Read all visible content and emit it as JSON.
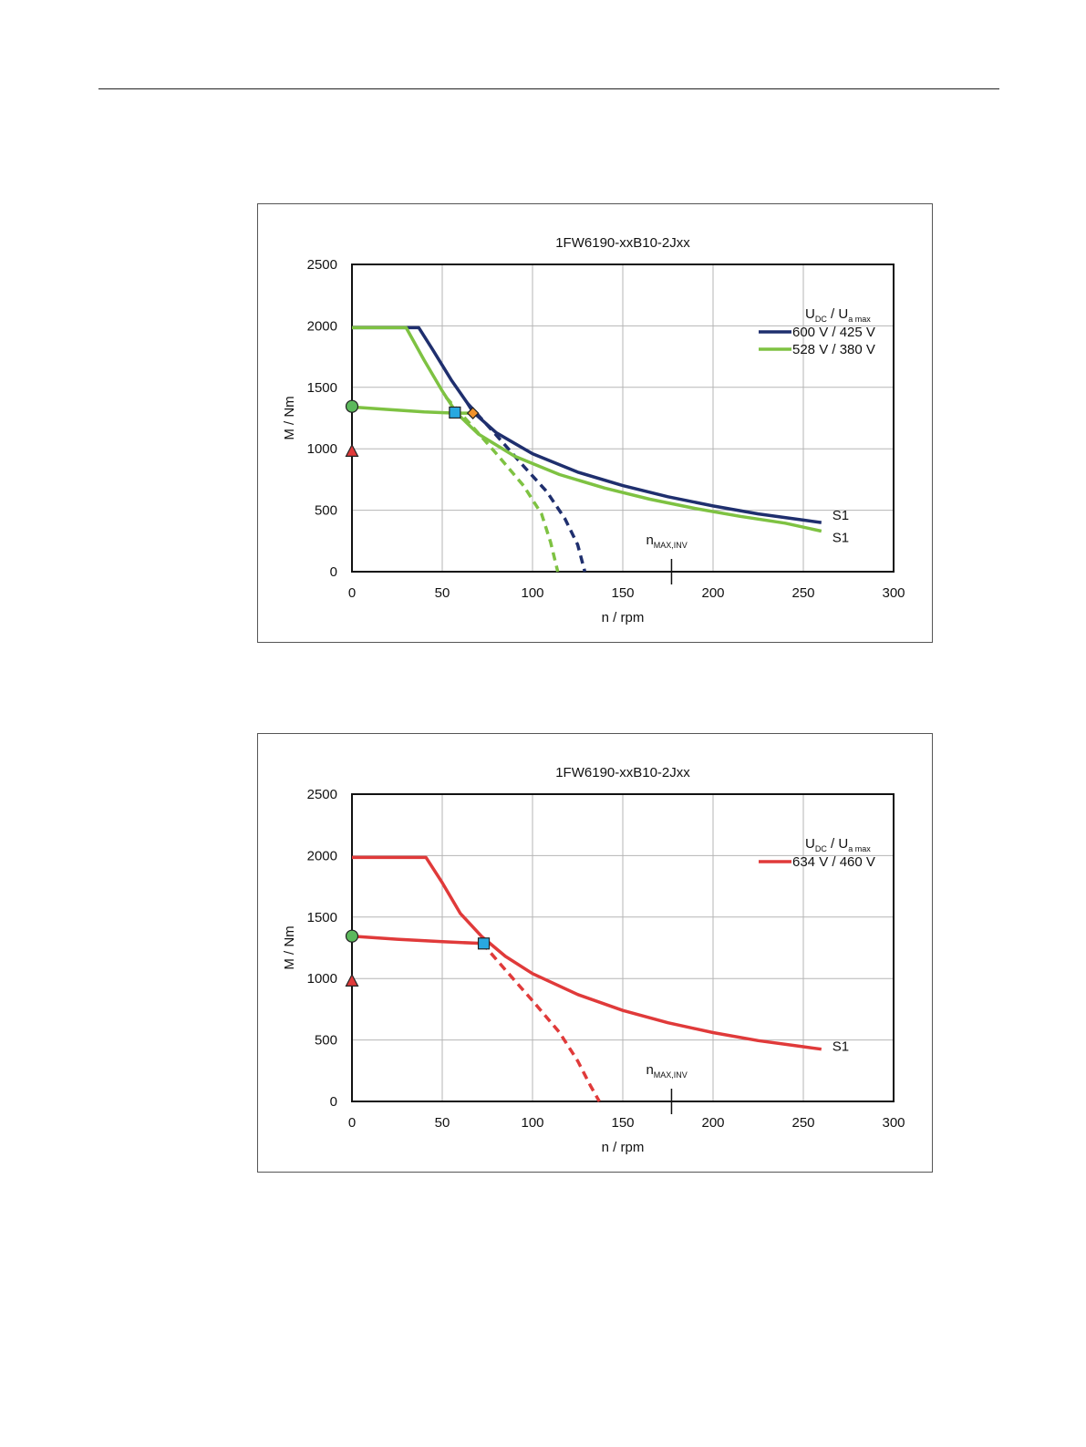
{
  "chart_data": [
    {
      "type": "line",
      "title": "1FW6190-xxB10-2Jxx",
      "xlabel": "n / rpm",
      "ylabel": "M / Nm",
      "xlim": [
        0,
        300
      ],
      "ylim": [
        0,
        2500
      ],
      "xticks": [
        0,
        50,
        100,
        150,
        200,
        250,
        300
      ],
      "yticks": [
        0,
        500,
        1000,
        1500,
        2000,
        2500
      ],
      "grid": true,
      "legend": {
        "position": "top-right",
        "title_main_1": "U",
        "title_sub_1": "DC",
        "title_sep": " / ",
        "title_main_2": "U",
        "title_sub_2": "a max"
      },
      "marker_label": {
        "main": "n",
        "sub": "MAX,INV",
        "x": 177
      },
      "series": [
        {
          "name": "600 V / 425 V",
          "color": "#1f2f6e",
          "style": "solid",
          "end_label": "S1",
          "points": [
            [
              0,
              1985
            ],
            [
              37,
              1985
            ],
            [
              45,
              1800
            ],
            [
              55,
              1560
            ],
            [
              64,
              1370
            ],
            [
              67,
              1300
            ],
            [
              80,
              1130
            ],
            [
              100,
              960
            ],
            [
              125,
              810
            ],
            [
              150,
              700
            ],
            [
              175,
              610
            ],
            [
              200,
              535
            ],
            [
              225,
              470
            ],
            [
              250,
              420
            ],
            [
              260,
              400
            ]
          ]
        },
        {
          "name": "",
          "color": "#1f2f6e",
          "style": "dashed",
          "points": [
            [
              64,
              1370
            ],
            [
              80,
              1110
            ],
            [
              95,
              860
            ],
            [
              108,
              650
            ],
            [
              118,
              430
            ],
            [
              125,
              220
            ],
            [
              129,
              0
            ]
          ]
        },
        {
          "name": "528 V / 380 V",
          "color": "#7ec242",
          "style": "solid",
          "end_label": "S1",
          "points": [
            [
              0,
              1985
            ],
            [
              30,
              1985
            ],
            [
              40,
              1720
            ],
            [
              50,
              1470
            ],
            [
              58,
              1290
            ],
            [
              70,
              1120
            ],
            [
              90,
              940
            ],
            [
              115,
              790
            ],
            [
              140,
              680
            ],
            [
              165,
              590
            ],
            [
              190,
              515
            ],
            [
              215,
              450
            ],
            [
              240,
              395
            ],
            [
              260,
              330
            ]
          ]
        },
        {
          "name": "",
          "color": "#7ec242",
          "style": "dashed",
          "points": [
            [
              52,
              1420
            ],
            [
              65,
              1210
            ],
            [
              80,
              960
            ],
            [
              95,
              700
            ],
            [
              105,
              470
            ],
            [
              110,
              240
            ],
            [
              114,
              0
            ]
          ]
        },
        {
          "name": "",
          "color": "#7ec242",
          "style": "solid",
          "points": [
            [
              0,
              1340
            ],
            [
              20,
              1320
            ],
            [
              40,
              1300
            ],
            [
              57,
              1290
            ],
            [
              66,
              1290
            ]
          ]
        }
      ],
      "markers": [
        {
          "shape": "circle",
          "color": "#5cb85c",
          "x": 0,
          "y": 1345
        },
        {
          "shape": "triangle",
          "color": "#e03a3a",
          "x": 0,
          "y": 980
        },
        {
          "shape": "square",
          "color": "#29a8e0",
          "x": 57,
          "y": 1295
        },
        {
          "shape": "diamond",
          "color": "#f0922b",
          "x": 67,
          "y": 1290
        }
      ]
    },
    {
      "type": "line",
      "title": "1FW6190-xxB10-2Jxx",
      "xlabel": "n / rpm",
      "ylabel": "M / Nm",
      "xlim": [
        0,
        300
      ],
      "ylim": [
        0,
        2500
      ],
      "xticks": [
        0,
        50,
        100,
        150,
        200,
        250,
        300
      ],
      "yticks": [
        0,
        500,
        1000,
        1500,
        2000,
        2500
      ],
      "grid": true,
      "legend": {
        "position": "top-right",
        "title_main_1": "U",
        "title_sub_1": "DC",
        "title_sep": " / ",
        "title_main_2": "U",
        "title_sub_2": "a max"
      },
      "marker_label": {
        "main": "n",
        "sub": "MAX,INV",
        "x": 177
      },
      "series": [
        {
          "name": "634 V / 460 V",
          "color": "#e03a3a",
          "style": "solid",
          "end_label": "S1",
          "points": [
            [
              0,
              1985
            ],
            [
              41,
              1985
            ],
            [
              50,
              1780
            ],
            [
              60,
              1530
            ],
            [
              72,
              1340
            ],
            [
              85,
              1180
            ],
            [
              100,
              1040
            ],
            [
              125,
              870
            ],
            [
              150,
              740
            ],
            [
              175,
              640
            ],
            [
              200,
              560
            ],
            [
              225,
              495
            ],
            [
              250,
              445
            ],
            [
              260,
              425
            ]
          ]
        },
        {
          "name": "",
          "color": "#e03a3a",
          "style": "dashed",
          "points": [
            [
              72,
              1290
            ],
            [
              85,
              1070
            ],
            [
              100,
              820
            ],
            [
              115,
              560
            ],
            [
              125,
              330
            ],
            [
              132,
              130
            ],
            [
              137,
              0
            ]
          ]
        },
        {
          "name": "",
          "color": "#e03a3a",
          "style": "solid",
          "points": [
            [
              0,
              1345
            ],
            [
              25,
              1320
            ],
            [
              50,
              1300
            ],
            [
              73,
              1285
            ]
          ]
        }
      ],
      "markers": [
        {
          "shape": "circle",
          "color": "#5cb85c",
          "x": 0,
          "y": 1345
        },
        {
          "shape": "triangle",
          "color": "#e03a3a",
          "x": 0,
          "y": 980
        },
        {
          "shape": "square",
          "color": "#29a8e0",
          "x": 73,
          "y": 1285
        }
      ]
    }
  ]
}
